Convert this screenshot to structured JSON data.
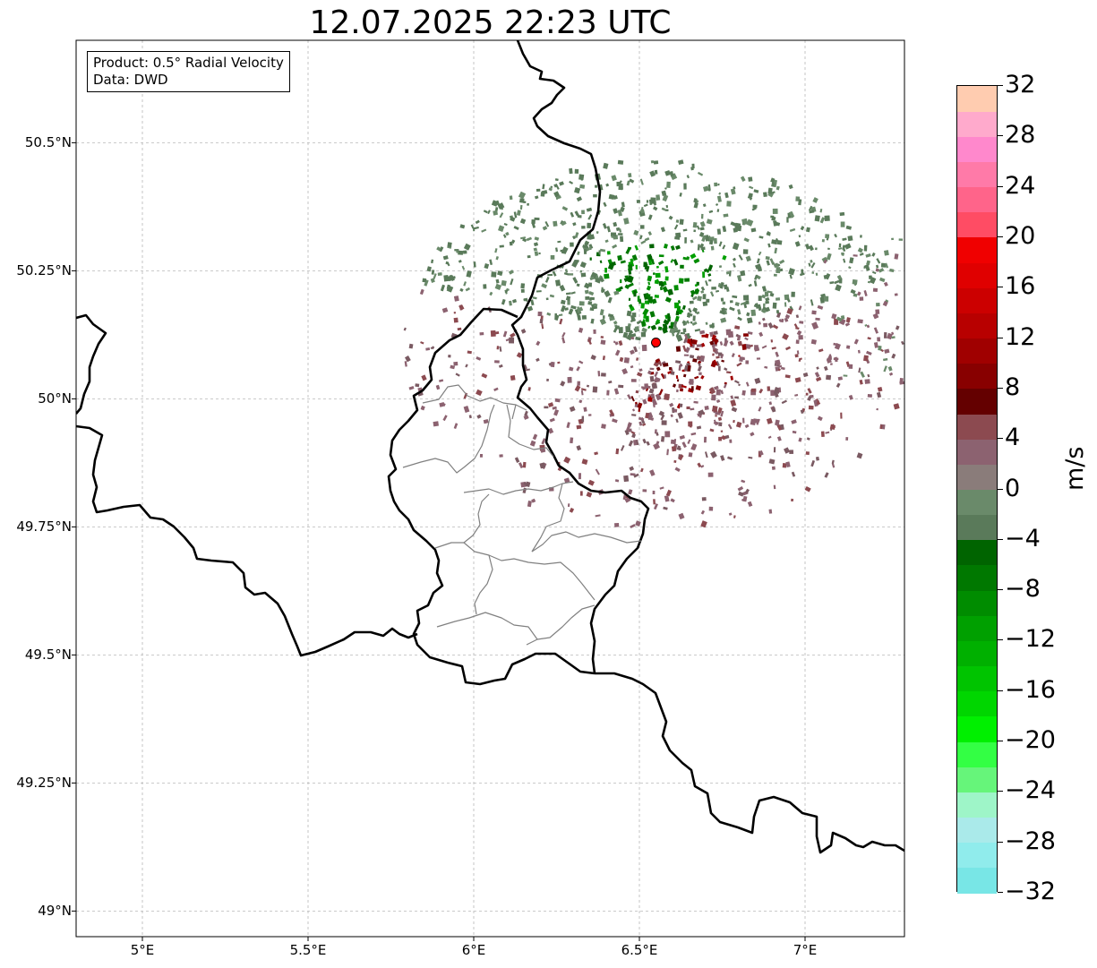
{
  "title": "12.07.2025 22:23 UTC",
  "info_box": {
    "product": "Product: 0.5° Radial Velocity",
    "data": "Data: DWD"
  },
  "map": {
    "extent": {
      "lon_min": 4.8,
      "lon_max": 7.3,
      "lat_min": 48.95,
      "lat_max": 50.7
    },
    "lat_ticks": [
      {
        "value": 50.5,
        "label": "50.5°N"
      },
      {
        "value": 50.25,
        "label": "50.25°N"
      },
      {
        "value": 50.0,
        "label": "50°N"
      },
      {
        "value": 49.75,
        "label": "49.75°N"
      },
      {
        "value": 49.5,
        "label": "49.5°N"
      },
      {
        "value": 49.25,
        "label": "49.25°N"
      },
      {
        "value": 49.0,
        "label": "49°N"
      }
    ],
    "lon_ticks": [
      {
        "value": 5.0,
        "label": "5°E"
      },
      {
        "value": 5.5,
        "label": "5.5°E"
      },
      {
        "value": 6.0,
        "label": "6°E"
      },
      {
        "value": 6.5,
        "label": "6.5°E"
      },
      {
        "value": 7.0,
        "label": "7°E"
      }
    ],
    "radar_site": {
      "lon": 6.55,
      "lat": 50.11,
      "color": "#ff0000"
    },
    "border_color": "#000000",
    "district_color": "#808080"
  },
  "colorbar": {
    "unit": "m/s",
    "min": -32,
    "max": 32,
    "tick_values": [
      -32,
      -28,
      -24,
      -20,
      -16,
      -12,
      -8,
      -4,
      0,
      4,
      8,
      12,
      16,
      20,
      24,
      28,
      32
    ],
    "tick_labels": [
      "−32",
      "−28",
      "−24",
      "−20",
      "−16",
      "−12",
      "−8",
      "−4",
      "0",
      "4",
      "8",
      "12",
      "16",
      "20",
      "24",
      "28",
      "32"
    ],
    "colors": [
      "#78e6e6",
      "#90ecec",
      "#aaeaea",
      "#9ef5c8",
      "#66f57a",
      "#33ff44",
      "#00f000",
      "#00d600",
      "#00c400",
      "#00b000",
      "#00a000",
      "#008c00",
      "#007800",
      "#006400",
      "#5a7a5a",
      "#6a8a6a",
      "#8a7c7a",
      "#8c6270",
      "#8c4a50",
      "#640000",
      "#880000",
      "#a00000",
      "#b80000",
      "#cc0000",
      "#e00000",
      "#f00000",
      "#ff4c64",
      "#ff648a",
      "#ff7aa8",
      "#ff88cc",
      "#ffaacc",
      "#ffccb0"
    ]
  }
}
